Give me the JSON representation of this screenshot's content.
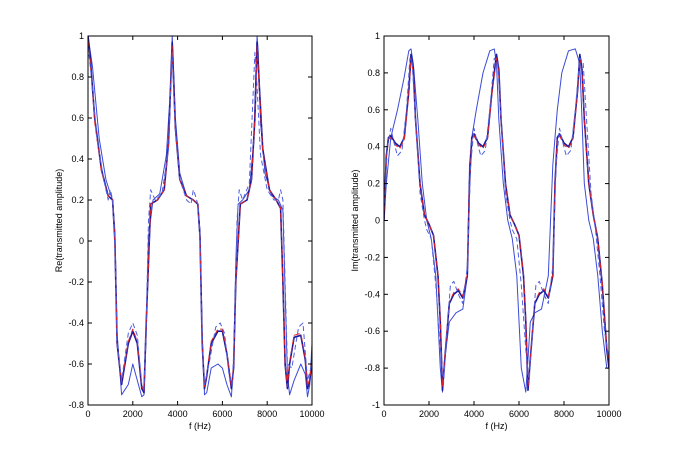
{
  "chart_data": [
    {
      "type": "line",
      "xlabel": "f (Hz)",
      "ylabel": "Re(transmitted amplitude)",
      "xlim": [
        0,
        10000
      ],
      "ylim": [
        -0.8,
        1
      ],
      "xticks": [
        0,
        2000,
        4000,
        6000,
        8000,
        10000
      ],
      "xtick_labels": [
        "0",
        "2000",
        "4000",
        "6000",
        "8000",
        "10000"
      ],
      "yticks": [
        -0.8,
        -0.6,
        -0.4,
        -0.2,
        0,
        0.2,
        0.4,
        0.6,
        0.8,
        1
      ],
      "ytick_labels": [
        "-0.8",
        "-0.6",
        "-0.4",
        "-0.2",
        "0",
        "0.2",
        "0.4",
        "0.6",
        "0.8",
        "1"
      ],
      "grid": false,
      "series": [
        {
          "color": "#3b4bd6",
          "dash": "none",
          "x": [
            0,
            200,
            500,
            800,
            1000,
            1100,
            1200,
            1300,
            1500,
            1800,
            2000,
            2200,
            2400,
            2500,
            2600,
            2700,
            2900,
            3200,
            3500,
            3700,
            3760,
            3800,
            3900,
            4100,
            4400,
            4700,
            4900,
            5000,
            5100,
            5200,
            5300,
            5500,
            5800,
            6000,
            6200,
            6400,
            6500,
            6600,
            6700,
            6900,
            7200,
            7400,
            7500,
            7550,
            7600,
            7700,
            7900,
            8200,
            8500,
            8700,
            8800,
            8900,
            9000,
            9200,
            9500,
            9700,
            9800,
            9900,
            10000
          ],
          "y": [
            1,
            0.85,
            0.5,
            0.3,
            0.23,
            0.2,
            0.05,
            -0.45,
            -0.75,
            -0.7,
            -0.6,
            -0.68,
            -0.76,
            -0.75,
            -0.45,
            0.02,
            0.2,
            0.23,
            0.42,
            0.78,
            1.0,
            0.9,
            0.6,
            0.33,
            0.22,
            0.2,
            0.18,
            0.05,
            -0.45,
            -0.75,
            -0.74,
            -0.62,
            -0.6,
            -0.62,
            -0.7,
            -0.76,
            -0.6,
            -0.1,
            0.18,
            0.2,
            0.25,
            0.48,
            0.85,
            1.0,
            0.92,
            0.58,
            0.33,
            0.22,
            0.2,
            0.15,
            -0.25,
            -0.65,
            -0.75,
            -0.68,
            -0.6,
            -0.65,
            -0.76,
            -0.7,
            -0.5
          ]
        },
        {
          "color": "#1a1aa0",
          "dash": "none",
          "x": [
            0,
            100,
            300,
            600,
            900,
            1100,
            1200,
            1300,
            1500,
            1800,
            2000,
            2200,
            2400,
            2500,
            2600,
            2800,
            3100,
            3400,
            3600,
            3700,
            3760,
            3800,
            3900,
            4100,
            4400,
            4700,
            4900,
            5000,
            5100,
            5200,
            5300,
            5500,
            5800,
            6000,
            6200,
            6400,
            6500,
            6600,
            6800,
            7100,
            7300,
            7450,
            7550,
            7650,
            7800,
            8100,
            8400,
            8600,
            8700,
            8800,
            8900,
            9000,
            9200,
            9500,
            9700,
            9800,
            9900,
            10000
          ],
          "y": [
            1,
            0.9,
            0.6,
            0.35,
            0.22,
            0.2,
            0.0,
            -0.5,
            -0.7,
            -0.5,
            -0.44,
            -0.5,
            -0.72,
            -0.74,
            -0.4,
            0.18,
            0.2,
            0.25,
            0.48,
            0.8,
            0.97,
            0.85,
            0.55,
            0.3,
            0.22,
            0.2,
            0.18,
            0.02,
            -0.5,
            -0.72,
            -0.66,
            -0.5,
            -0.44,
            -0.44,
            -0.55,
            -0.72,
            -0.62,
            -0.2,
            0.18,
            0.2,
            0.3,
            0.6,
            0.97,
            0.75,
            0.45,
            0.25,
            0.2,
            0.16,
            -0.2,
            -0.6,
            -0.72,
            -0.6,
            -0.47,
            -0.46,
            -0.58,
            -0.72,
            -0.68,
            -0.58
          ]
        },
        {
          "color": "#e02020",
          "dash": "6,3",
          "x": [
            0,
            100,
            300,
            600,
            900,
            1100,
            1200,
            1300,
            1500,
            1800,
            2000,
            2200,
            2400,
            2500,
            2600,
            2800,
            3100,
            3400,
            3600,
            3700,
            3760,
            3800,
            3900,
            4100,
            4400,
            4700,
            4900,
            5000,
            5100,
            5200,
            5300,
            5500,
            5800,
            6000,
            6200,
            6400,
            6500,
            6600,
            6800,
            7100,
            7300,
            7450,
            7550,
            7650,
            7800,
            8100,
            8400,
            8600,
            8700,
            8800,
            8900,
            9000,
            9200,
            9500,
            9700,
            9800,
            9900,
            10000
          ],
          "y": [
            0.98,
            0.88,
            0.58,
            0.34,
            0.22,
            0.2,
            0.0,
            -0.5,
            -0.69,
            -0.49,
            -0.43,
            -0.49,
            -0.71,
            -0.73,
            -0.4,
            0.18,
            0.2,
            0.25,
            0.47,
            0.78,
            0.95,
            0.84,
            0.54,
            0.3,
            0.22,
            0.2,
            0.18,
            0.02,
            -0.5,
            -0.71,
            -0.65,
            -0.49,
            -0.43,
            -0.43,
            -0.54,
            -0.71,
            -0.61,
            -0.2,
            0.18,
            0.2,
            0.3,
            0.59,
            0.95,
            0.74,
            0.44,
            0.25,
            0.2,
            0.16,
            -0.2,
            -0.59,
            -0.71,
            -0.59,
            -0.46,
            -0.45,
            -0.57,
            -0.71,
            -0.67,
            -0.57
          ]
        },
        {
          "color": "#5060e0",
          "dash": "5,3",
          "x": [
            0,
            150,
            400,
            700,
            900,
            1000,
            1100,
            1200,
            1300,
            1500,
            1800,
            2000,
            2200,
            2400,
            2500,
            2600,
            2700,
            2800,
            3000,
            3300,
            3600,
            3750,
            3900,
            4100,
            4400,
            4600,
            4700,
            4800,
            4900,
            5000,
            5100,
            5200,
            5400,
            5700,
            5900,
            6100,
            6300,
            6450,
            6550,
            6650,
            6750,
            6900,
            7200,
            7450,
            7550,
            7700,
            8000,
            8300,
            8500,
            8600,
            8700,
            8800,
            8900,
            9100,
            9400,
            9600,
            9800,
            10000
          ],
          "y": [
            0.95,
            0.8,
            0.5,
            0.3,
            0.2,
            0.25,
            0.2,
            0.0,
            -0.5,
            -0.68,
            -0.45,
            -0.4,
            -0.46,
            -0.7,
            -0.72,
            -0.4,
            0.1,
            0.25,
            0.2,
            0.23,
            0.45,
            0.92,
            0.55,
            0.3,
            0.2,
            0.18,
            0.25,
            0.22,
            0.18,
            0.02,
            -0.5,
            -0.7,
            -0.6,
            -0.42,
            -0.4,
            -0.45,
            -0.66,
            -0.7,
            -0.4,
            0.1,
            0.25,
            0.2,
            0.28,
            0.92,
            0.75,
            0.42,
            0.25,
            0.2,
            0.2,
            0.25,
            0.2,
            -0.2,
            -0.6,
            -0.62,
            -0.42,
            -0.4,
            -0.68,
            -0.6
          ]
        }
      ]
    },
    {
      "type": "line",
      "xlabel": "f (Hz)",
      "ylabel": "Im(transmitted amplitude)",
      "xlim": [
        0,
        10000
      ],
      "ylim": [
        -1,
        1
      ],
      "xticks": [
        0,
        2000,
        4000,
        6000,
        8000,
        10000
      ],
      "xtick_labels": [
        "0",
        "2000",
        "4000",
        "6000",
        "8000",
        "10000"
      ],
      "yticks": [
        -1,
        -0.8,
        -0.6,
        -0.4,
        -0.2,
        0,
        0.2,
        0.4,
        0.6,
        0.8,
        1
      ],
      "ytick_labels": [
        "-1",
        "-0.8",
        "-0.6",
        "-0.4",
        "-0.2",
        "0",
        "0.2",
        "0.4",
        "0.6",
        "0.8",
        "1"
      ],
      "grid": false,
      "series": [
        {
          "color": "#3b4bd6",
          "dash": "none",
          "x": [
            0,
            100,
            300,
            600,
            900,
            1100,
            1200,
            1300,
            1500,
            1700,
            1900,
            2100,
            2300,
            2500,
            2600,
            2700,
            2900,
            3200,
            3500,
            3700,
            3800,
            3900,
            4100,
            4400,
            4700,
            4900,
            5000,
            5100,
            5300,
            5500,
            5700,
            5900,
            6100,
            6300,
            6400,
            6500,
            6700,
            7000,
            7300,
            7500,
            7600,
            7700,
            7900,
            8200,
            8500,
            8700,
            8800,
            8900,
            9100,
            9300,
            9500,
            9700,
            9900,
            10000
          ],
          "y": [
            0.0,
            0.2,
            0.45,
            0.6,
            0.78,
            0.92,
            0.93,
            0.85,
            0.55,
            0.2,
            0.0,
            -0.1,
            -0.3,
            -0.8,
            -0.93,
            -0.75,
            -0.55,
            -0.5,
            -0.48,
            -0.3,
            0.3,
            0.45,
            0.6,
            0.8,
            0.92,
            0.93,
            0.85,
            0.55,
            0.2,
            0.0,
            -0.1,
            -0.3,
            -0.8,
            -0.93,
            -0.75,
            -0.55,
            -0.5,
            -0.48,
            -0.3,
            0.3,
            0.45,
            0.6,
            0.8,
            0.92,
            0.93,
            0.85,
            0.55,
            0.2,
            0.0,
            -0.1,
            -0.3,
            -0.6,
            -0.8,
            -0.8
          ]
        },
        {
          "color": "#1a1aa0",
          "dash": "none",
          "x": [
            0,
            100,
            200,
            300,
            500,
            700,
            900,
            1100,
            1200,
            1300,
            1400,
            1600,
            1800,
            2000,
            2200,
            2400,
            2500,
            2600,
            2700,
            2900,
            3100,
            3300,
            3500,
            3700,
            3800,
            3900,
            4000,
            4200,
            4400,
            4600,
            4800,
            5000,
            5100,
            5200,
            5400,
            5600,
            5800,
            6000,
            6200,
            6300,
            6400,
            6500,
            6700,
            6900,
            7100,
            7300,
            7500,
            7600,
            7700,
            7800,
            8000,
            8200,
            8400,
            8600,
            8700,
            8800,
            8900,
            9100,
            9300,
            9500,
            9700,
            9900,
            10000
          ],
          "y": [
            0.0,
            0.35,
            0.45,
            0.46,
            0.42,
            0.4,
            0.45,
            0.7,
            0.9,
            0.82,
            0.55,
            0.2,
            0.03,
            -0.02,
            -0.08,
            -0.3,
            -0.55,
            -0.92,
            -0.75,
            -0.45,
            -0.4,
            -0.38,
            -0.42,
            -0.3,
            0.2,
            0.45,
            0.47,
            0.42,
            0.4,
            0.45,
            0.7,
            0.9,
            0.82,
            0.55,
            0.2,
            0.03,
            -0.02,
            -0.08,
            -0.3,
            -0.55,
            -0.92,
            -0.75,
            -0.45,
            -0.4,
            -0.38,
            -0.42,
            -0.3,
            0.2,
            0.45,
            0.47,
            0.42,
            0.4,
            0.45,
            0.7,
            0.9,
            0.82,
            0.55,
            0.2,
            0.03,
            -0.1,
            -0.35,
            -0.7,
            -0.8
          ]
        },
        {
          "color": "#e02020",
          "dash": "6,3",
          "x": [
            0,
            100,
            200,
            300,
            500,
            700,
            900,
            1100,
            1200,
            1300,
            1400,
            1600,
            1800,
            2000,
            2200,
            2400,
            2500,
            2600,
            2700,
            2900,
            3100,
            3300,
            3500,
            3700,
            3800,
            3900,
            4000,
            4200,
            4400,
            4600,
            4800,
            5000,
            5100,
            5200,
            5400,
            5600,
            5800,
            6000,
            6200,
            6300,
            6400,
            6500,
            6700,
            6900,
            7100,
            7300,
            7500,
            7600,
            7700,
            7800,
            8000,
            8200,
            8400,
            8600,
            8700,
            8800,
            8900,
            9100,
            9300,
            9500,
            9700,
            9900,
            10000
          ],
          "y": [
            0.0,
            0.34,
            0.44,
            0.45,
            0.41,
            0.39,
            0.44,
            0.69,
            0.88,
            0.8,
            0.54,
            0.2,
            0.03,
            -0.02,
            -0.08,
            -0.29,
            -0.54,
            -0.9,
            -0.74,
            -0.44,
            -0.39,
            -0.37,
            -0.41,
            -0.29,
            0.2,
            0.44,
            0.46,
            0.41,
            0.39,
            0.44,
            0.69,
            0.88,
            0.8,
            0.54,
            0.2,
            0.03,
            -0.02,
            -0.08,
            -0.29,
            -0.54,
            -0.9,
            -0.74,
            -0.44,
            -0.39,
            -0.37,
            -0.41,
            -0.29,
            0.2,
            0.44,
            0.46,
            0.41,
            0.39,
            0.44,
            0.69,
            0.88,
            0.8,
            0.54,
            0.2,
            0.03,
            -0.1,
            -0.34,
            -0.68,
            -0.78
          ]
        },
        {
          "color": "#5060e0",
          "dash": "5,3",
          "x": [
            0,
            150,
            300,
            450,
            600,
            800,
            1000,
            1150,
            1250,
            1400,
            1600,
            1800,
            1900,
            2100,
            2300,
            2500,
            2650,
            2800,
            2950,
            3100,
            3300,
            3500,
            3700,
            3850,
            4000,
            4150,
            4300,
            4500,
            4700,
            4900,
            5050,
            5200,
            5400,
            5600,
            5700,
            5900,
            6100,
            6300,
            6450,
            6600,
            6750,
            6900,
            7100,
            7300,
            7500,
            7650,
            7800,
            7950,
            8100,
            8300,
            8500,
            8700,
            8850,
            9000,
            9200,
            9400,
            9600,
            9800,
            10000
          ],
          "y": [
            0.05,
            0.4,
            0.5,
            0.42,
            0.35,
            0.38,
            0.6,
            0.88,
            0.86,
            0.55,
            0.15,
            0.0,
            -0.05,
            -0.1,
            -0.35,
            -0.7,
            -0.88,
            -0.6,
            -0.35,
            -0.33,
            -0.4,
            -0.45,
            -0.25,
            0.3,
            0.5,
            0.42,
            0.35,
            0.38,
            0.6,
            0.88,
            0.86,
            0.55,
            0.15,
            0.0,
            -0.05,
            -0.1,
            -0.35,
            -0.7,
            -0.88,
            -0.6,
            -0.35,
            -0.33,
            -0.4,
            -0.45,
            -0.25,
            0.3,
            0.5,
            0.42,
            0.35,
            0.38,
            0.6,
            0.88,
            0.86,
            0.55,
            0.15,
            -0.05,
            -0.3,
            -0.6,
            -0.75
          ]
        }
      ]
    }
  ]
}
